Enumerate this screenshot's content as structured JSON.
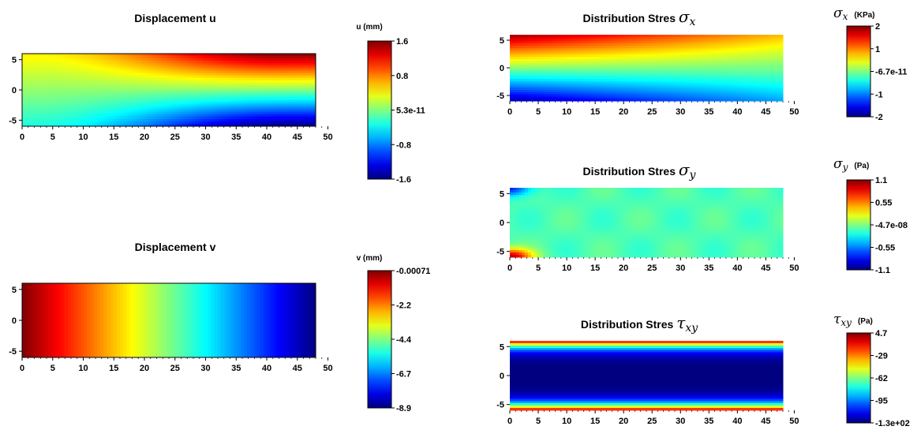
{
  "chart_data": [
    {
      "type": "heatmap",
      "title": "Displacement u",
      "field": "u",
      "x": [
        0,
        48
      ],
      "y": [
        -6,
        6
      ],
      "xticks": [
        "0",
        "5",
        "10",
        "15",
        "20",
        "25",
        "30",
        "35",
        "40",
        "45",
        "50"
      ],
      "yticks": [
        "5",
        "0",
        "-5"
      ],
      "colorbar": {
        "label": "u (mm)",
        "min": -1.6,
        "max": 1.6,
        "ticks": [
          "1.6",
          "0.8",
          "5.3e-11",
          "-0.8",
          "-1.6"
        ]
      }
    },
    {
      "type": "heatmap",
      "title": "Displacement v",
      "field": "v",
      "x": [
        0,
        48
      ],
      "y": [
        -6,
        6
      ],
      "xticks": [
        "0",
        "5",
        "10",
        "15",
        "20",
        "25",
        "30",
        "35",
        "40",
        "45",
        "50"
      ],
      "yticks": [
        "5",
        "0",
        "-5"
      ],
      "colorbar": {
        "label": "v (mm)",
        "min": -8.9,
        "max": -0.00071,
        "ticks": [
          "-0.00071",
          "-2.2",
          "-4.4",
          "-6.7",
          "-8.9"
        ]
      }
    },
    {
      "type": "heatmap",
      "title": "Distribution Stres",
      "symbol": "σ",
      "subscript": "x",
      "field": "sx",
      "x": [
        0,
        48
      ],
      "y": [
        -6,
        6
      ],
      "xticks": [
        "0",
        "5",
        "10",
        "15",
        "20",
        "25",
        "30",
        "35",
        "40",
        "45",
        "50"
      ],
      "yticks": [
        "5",
        "0",
        "-5"
      ],
      "colorbar": {
        "unit": "(KPa)",
        "min": -2,
        "max": 2,
        "ticks": [
          "2",
          "1",
          "-6.7e-11",
          "-1",
          "-2"
        ]
      }
    },
    {
      "type": "heatmap",
      "title": "Distribution Stres",
      "symbol": "σ",
      "subscript": "y",
      "field": "sy",
      "x": [
        0,
        48
      ],
      "y": [
        -6,
        6
      ],
      "xticks": [
        "0",
        "5",
        "10",
        "15",
        "20",
        "25",
        "30",
        "35",
        "40",
        "45",
        "50"
      ],
      "yticks": [
        "5",
        "0",
        "-5"
      ],
      "colorbar": {
        "unit": "(Pa)",
        "min": -1.1,
        "max": 1.1,
        "ticks": [
          "1.1",
          "0.55",
          "-4.7e-08",
          "-0.55",
          "-1.1"
        ]
      }
    },
    {
      "type": "heatmap",
      "title": "Distribution Stres",
      "symbol": "τ",
      "subscript": "xy",
      "field": "txy",
      "x": [
        0,
        48
      ],
      "y": [
        -6,
        6
      ],
      "xticks": [
        "0",
        "5",
        "10",
        "15",
        "20",
        "25",
        "30",
        "35",
        "40",
        "45",
        "50"
      ],
      "yticks": [
        "5",
        "0",
        "-5"
      ],
      "colorbar": {
        "unit": "(Pa)",
        "min": -130,
        "max": 4.7,
        "ticks": [
          "4.7",
          "-29",
          "-62",
          "-95",
          "-1.3e+02"
        ]
      }
    }
  ],
  "colormap": "jet"
}
